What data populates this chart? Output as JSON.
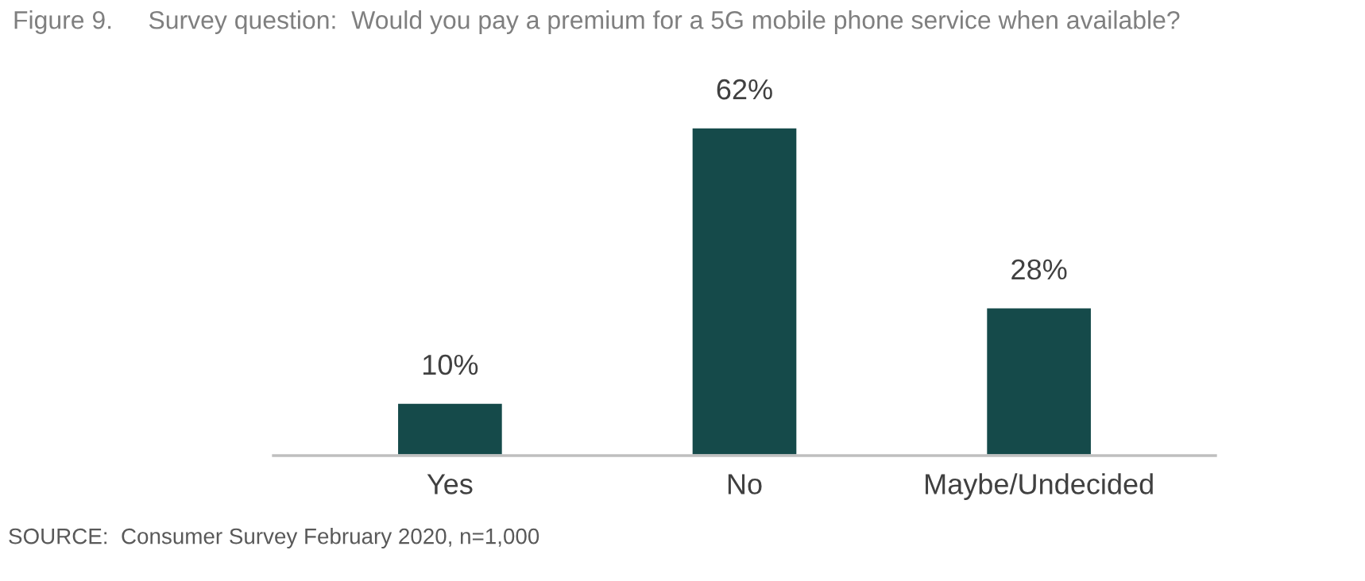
{
  "chart_data": {
    "type": "bar",
    "title": "Figure 9.     Survey question:  Would you pay a premium for a 5G mobile phone service when available?",
    "categories": [
      "Yes",
      "No",
      "Maybe/Undecided"
    ],
    "values": [
      10,
      62,
      28
    ],
    "value_labels": [
      "10%",
      "62%",
      "28%"
    ],
    "color": "#154a4a",
    "grid": false,
    "legend": false,
    "tick_labels": "x",
    "annotations": [
      "SOURCE:  Consumer Survey February 2020, n=1,000"
    ]
  }
}
